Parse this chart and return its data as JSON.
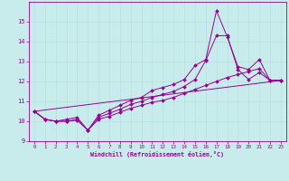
{
  "xlabel": "Windchill (Refroidissement éolien,°C)",
  "bg_color": "#c8ecec",
  "line_color": "#990099",
  "grid_color": "#b8e0e0",
  "xlim": [
    -0.5,
    23.5
  ],
  "ylim": [
    9,
    16
  ],
  "yticks": [
    9,
    10,
    11,
    12,
    13,
    14,
    15
  ],
  "xticks": [
    0,
    1,
    2,
    3,
    4,
    5,
    6,
    7,
    8,
    9,
    10,
    11,
    12,
    13,
    14,
    15,
    16,
    17,
    18,
    19,
    20,
    21,
    22,
    23
  ],
  "line1_x": [
    0,
    1,
    2,
    3,
    4,
    5,
    6,
    7,
    8,
    9,
    10,
    11,
    12,
    13,
    14,
    15,
    16,
    17,
    18,
    19,
    20,
    21,
    22,
    23
  ],
  "line1_y": [
    10.5,
    10.1,
    10.0,
    10.1,
    10.2,
    9.55,
    10.3,
    10.55,
    10.8,
    11.05,
    11.2,
    11.55,
    11.7,
    11.85,
    12.1,
    12.8,
    13.1,
    15.55,
    14.25,
    12.75,
    12.6,
    13.1,
    12.05,
    12.05
  ],
  "line2_x": [
    0,
    1,
    2,
    3,
    4,
    5,
    6,
    7,
    8,
    9,
    10,
    11,
    12,
    13,
    14,
    15,
    16,
    17,
    18,
    19,
    20,
    21,
    22,
    23
  ],
  "line2_y": [
    10.5,
    10.1,
    10.0,
    10.0,
    10.1,
    9.55,
    10.2,
    10.4,
    10.6,
    10.85,
    11.0,
    11.2,
    11.35,
    11.5,
    11.75,
    12.1,
    13.05,
    14.3,
    14.3,
    12.6,
    12.1,
    12.45,
    12.05,
    12.05
  ],
  "line3_x": [
    0,
    1,
    2,
    3,
    4,
    5,
    6,
    7,
    8,
    9,
    10,
    11,
    12,
    13,
    14,
    15,
    16,
    17,
    18,
    19,
    20,
    21,
    22,
    23
  ],
  "line3_y": [
    10.5,
    10.1,
    10.0,
    10.0,
    10.05,
    9.55,
    10.1,
    10.25,
    10.45,
    10.65,
    10.8,
    10.95,
    11.05,
    11.2,
    11.4,
    11.6,
    11.8,
    12.0,
    12.2,
    12.35,
    12.5,
    12.65,
    12.05,
    12.05
  ],
  "line4_x": [
    0,
    23
  ],
  "line4_y": [
    10.5,
    12.05
  ]
}
